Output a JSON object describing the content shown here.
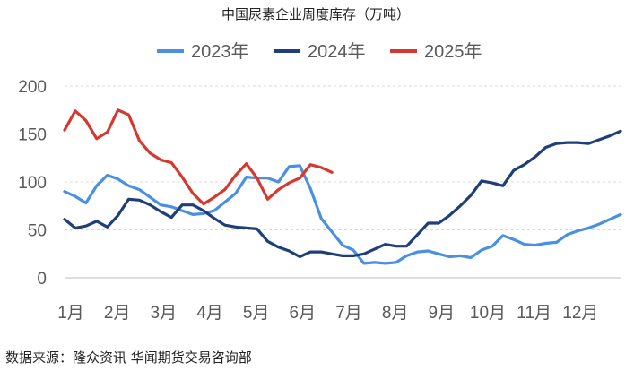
{
  "chart_data": {
    "type": "line",
    "title": "中国尿素企业周度库存（万吨）",
    "source": "数据来源：隆众资讯 华闻期货交易咨询部",
    "xlabel": "",
    "ylabel": "",
    "x_ticks": [
      "1月",
      "2月",
      "3月",
      "4月",
      "5月",
      "6月",
      "7月",
      "8月",
      "9月",
      "10月",
      "11月",
      "12月"
    ],
    "ylim": [
      0,
      200
    ],
    "y_ticks": [
      0,
      50,
      100,
      150,
      200
    ],
    "grid": true,
    "legend_position": "top",
    "series": [
      {
        "name": "2023年",
        "color": "#4a90e2",
        "values": [
          90,
          85,
          78,
          96,
          107,
          103,
          96,
          92,
          84,
          76,
          74,
          70,
          66,
          67,
          70,
          79,
          88,
          105,
          104,
          104,
          100,
          116,
          117,
          93,
          62,
          48,
          34,
          29,
          15,
          16,
          15,
          16,
          23,
          27,
          28,
          25,
          22,
          23,
          21,
          29,
          33,
          44,
          40,
          35,
          34,
          36,
          37,
          45,
          49,
          52,
          56,
          61,
          66
        ]
      },
      {
        "name": "2024年",
        "color": "#1f3f7a",
        "values": [
          61,
          52,
          54,
          59,
          53,
          65,
          82,
          81,
          76,
          69,
          63,
          76,
          76,
          70,
          62,
          55,
          53,
          52,
          51,
          38,
          32,
          28,
          22,
          27,
          27,
          25,
          23,
          23,
          25,
          30,
          35,
          33,
          33,
          45,
          57,
          57,
          65,
          75,
          86,
          101,
          99,
          96,
          112,
          118,
          126,
          136,
          140,
          141,
          141,
          140,
          144,
          148,
          153
        ]
      },
      {
        "name": "2025年",
        "color": "#d6372e",
        "values": [
          154,
          174,
          164,
          145,
          152,
          175,
          170,
          143,
          130,
          123,
          120,
          105,
          88,
          77,
          84,
          92,
          107,
          119,
          104,
          82,
          92,
          99,
          104,
          118,
          115,
          110
        ]
      }
    ]
  }
}
